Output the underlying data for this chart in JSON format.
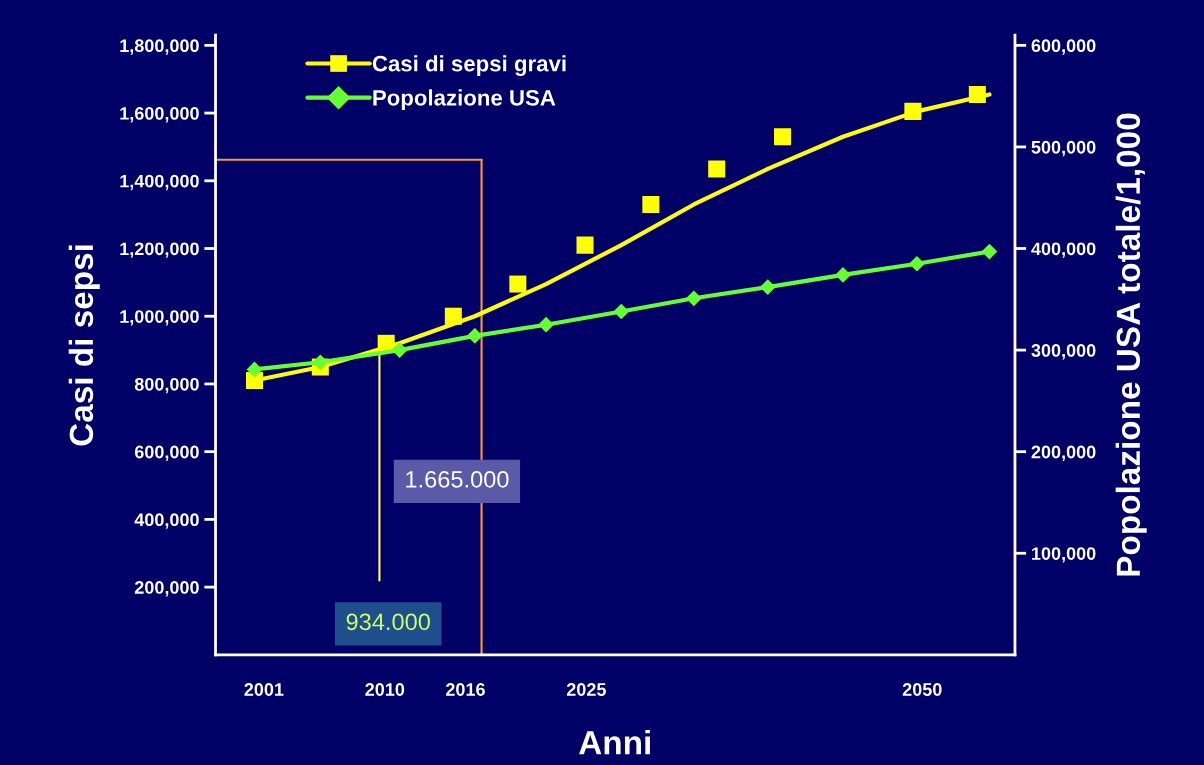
{
  "chart_data": {
    "type": "line",
    "xlabel": "Anni",
    "ylabel": "Casi di sepsi",
    "y2label": "Popolazione USA totale/1,000",
    "xlim": [
      1997.4,
      2056.9
    ],
    "xticks": [
      2001,
      2010,
      2016,
      2025,
      2050
    ],
    "ylim": [
      0,
      1830000
    ],
    "yticks": [
      {
        "value": 200000,
        "label": "200,000"
      },
      {
        "value": 400000,
        "label": "400,000"
      },
      {
        "value": 600000,
        "label": "600,000"
      },
      {
        "value": 800000,
        "label": "800,000"
      },
      {
        "value": 1000000,
        "label": "1,000,000"
      },
      {
        "value": 1200000,
        "label": "1,200,000"
      },
      {
        "value": 1400000,
        "label": "1,400,000"
      },
      {
        "value": 1600000,
        "label": "1,600,000"
      },
      {
        "value": 1800000,
        "label": "1,800,000"
      }
    ],
    "y2lim": [
      0,
      610000
    ],
    "y2ticks": [
      {
        "value": 100000,
        "label": "100,000"
      },
      {
        "value": 200000,
        "label": "200,000"
      },
      {
        "value": 300000,
        "label": "300,000"
      },
      {
        "value": 400000,
        "label": "400,000"
      },
      {
        "value": 500000,
        "label": "500,000"
      },
      {
        "value": 600000,
        "label": "600,000"
      }
    ],
    "legend": "top left",
    "grid": false,
    "series": [
      {
        "name": "Casi di sepsi gravi",
        "type": "scatter",
        "marker": "square",
        "color": "#ffff00",
        "x": [
          2000.3,
          2005.2,
          2010.1,
          2015.1,
          2019.9,
          2024.9,
          2029.8,
          2034.7,
          2039.6,
          2049.3,
          2054.1
        ],
        "values": [
          810000,
          850000,
          920000,
          1000000,
          1095000,
          1210000,
          1330000,
          1435000,
          1530000,
          1605000,
          1655000
        ]
      },
      {
        "marker": "none",
        "color": "#ffff00",
        "x": [
          2000.3,
          2005.2,
          2011.1,
          2016.7,
          2022.0,
          2027.6,
          2033.0,
          2038.5,
          2044.1,
          2049.6,
          2055.0
        ],
        "values": [
          810000,
          850000,
          920000,
          1000000,
          1095000,
          1210000,
          1330000,
          1435000,
          1530000,
          1605000,
          1655000
        ]
      },
      {
        "name": "Popolazione USA",
        "marker": "diamond",
        "color": "#66ff33",
        "axis": "y2",
        "x": [
          2000.3,
          2005.2,
          2011.1,
          2016.7,
          2022.0,
          2027.6,
          2033.0,
          2038.5,
          2044.1,
          2049.6,
          2055.0
        ],
        "values": [
          281000,
          288000,
          300000,
          314000,
          325000,
          338000,
          351000,
          362000,
          374000,
          385000,
          397000
        ]
      }
    ],
    "ref_lines": [
      {
        "axis": "y",
        "value": 1462000,
        "color": "#ff9933"
      },
      {
        "axis": "x",
        "value": 2017.2,
        "color": "#ff9933"
      },
      {
        "axis": "x",
        "value": 2009.6,
        "color": "#ffff66"
      }
    ],
    "annotations": [
      "1.665.000",
      "934.000"
    ]
  }
}
